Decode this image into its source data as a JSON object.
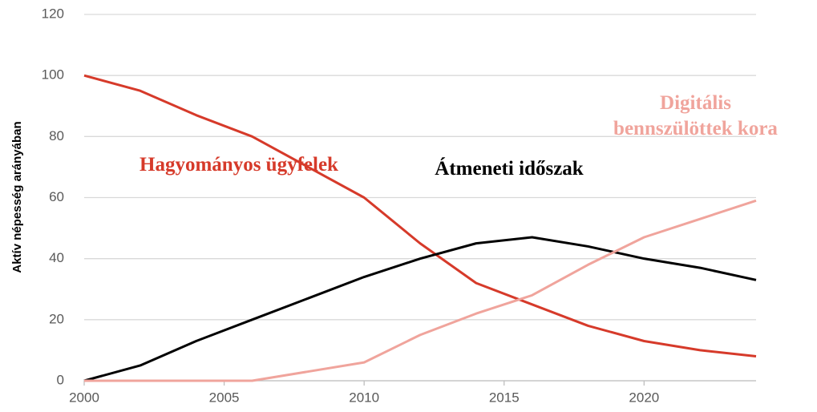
{
  "chart_data": {
    "type": "line",
    "y_label": "Aktív népesség arányában",
    "x": [
      2000,
      2002,
      2004,
      2006,
      2008,
      2010,
      2012,
      2014,
      2016,
      2018,
      2020,
      2022,
      2024
    ],
    "series": [
      {
        "name": "Hagyományos ügyfelek",
        "color": "#d63a2a",
        "values": [
          100,
          95,
          87,
          80,
          70,
          60,
          45,
          32,
          25,
          18,
          13,
          10,
          8
        ]
      },
      {
        "name": "Átmeneti időszak",
        "color": "#000000",
        "values": [
          0,
          5,
          13,
          20,
          27,
          34,
          40,
          45,
          47,
          44,
          40,
          37,
          33
        ]
      },
      {
        "name": "Digitális bennszülöttek kora",
        "color": "#f0a49c",
        "values": [
          0,
          0,
          0,
          0,
          3,
          6,
          15,
          22,
          28,
          38,
          47,
          53,
          59
        ]
      }
    ],
    "xlim": [
      2000,
      2024
    ],
    "xticks": [
      2000,
      2005,
      2010,
      2015,
      2020
    ],
    "ylim": [
      0,
      120
    ],
    "yticks": [
      0,
      20,
      40,
      60,
      80,
      100,
      120
    ],
    "grid": true
  }
}
